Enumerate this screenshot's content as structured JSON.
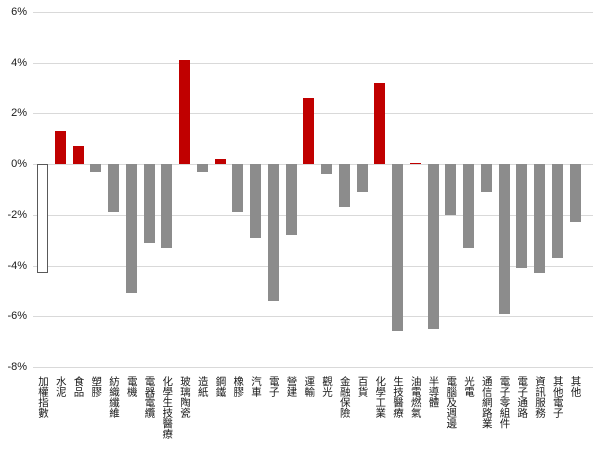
{
  "chart_data": {
    "type": "bar",
    "categories": [
      "加權指數",
      "水泥",
      "食品",
      "塑膠",
      "紡織纖維",
      "電機",
      "電器電纜",
      "化學生技醫療",
      "玻璃陶瓷",
      "造紙",
      "鋼鐵",
      "橡膠",
      "汽車",
      "電子",
      "營建",
      "運輸",
      "觀光",
      "金融保險",
      "百貨",
      "化學工業",
      "生技醫療",
      "油電燃氣",
      "半導體",
      "電腦及週邊",
      "光電",
      "通信網路業",
      "電子零組件",
      "電子通路",
      "資訊服務",
      "其他電子",
      "其他"
    ],
    "values": [
      -4.3,
      1.3,
      0.7,
      -0.3,
      -1.9,
      -5.1,
      -3.1,
      -3.3,
      4.1,
      -0.3,
      0.2,
      -1.9,
      -2.9,
      -5.4,
      -2.8,
      2.6,
      -0.4,
      -1.7,
      -1.1,
      3.2,
      -6.6,
      0.05,
      -6.5,
      -2.0,
      -3.3,
      -1.1,
      -5.9,
      -4.1,
      -4.3,
      -3.7,
      -2.3
    ],
    "point_styles": [
      "index",
      "positive",
      "positive",
      "negative",
      "negative",
      "negative",
      "negative",
      "negative",
      "positive",
      "negative",
      "positive",
      "negative",
      "negative",
      "negative",
      "negative",
      "positive",
      "negative",
      "negative",
      "negative",
      "positive",
      "negative",
      "positive",
      "negative",
      "negative",
      "negative",
      "negative",
      "negative",
      "negative",
      "negative",
      "negative",
      "negative"
    ],
    "yticks": [
      6,
      4,
      2,
      0,
      -2,
      -4,
      -6,
      -8
    ],
    "ytick_labels": [
      "6%",
      "4%",
      "2%",
      "0%",
      "-2%",
      "-4%",
      "-6%",
      "-8%"
    ],
    "ylim": [
      -8,
      6
    ],
    "grid": true,
    "legend": false,
    "colors": {
      "positive_bar": "#c00000",
      "negative_bar": "#8c8c8c",
      "index_bar_fill": "#ffffff",
      "index_bar_border": "#595959",
      "gridline": "#d9d9d9",
      "axis_text": "#1a1a1a"
    }
  }
}
